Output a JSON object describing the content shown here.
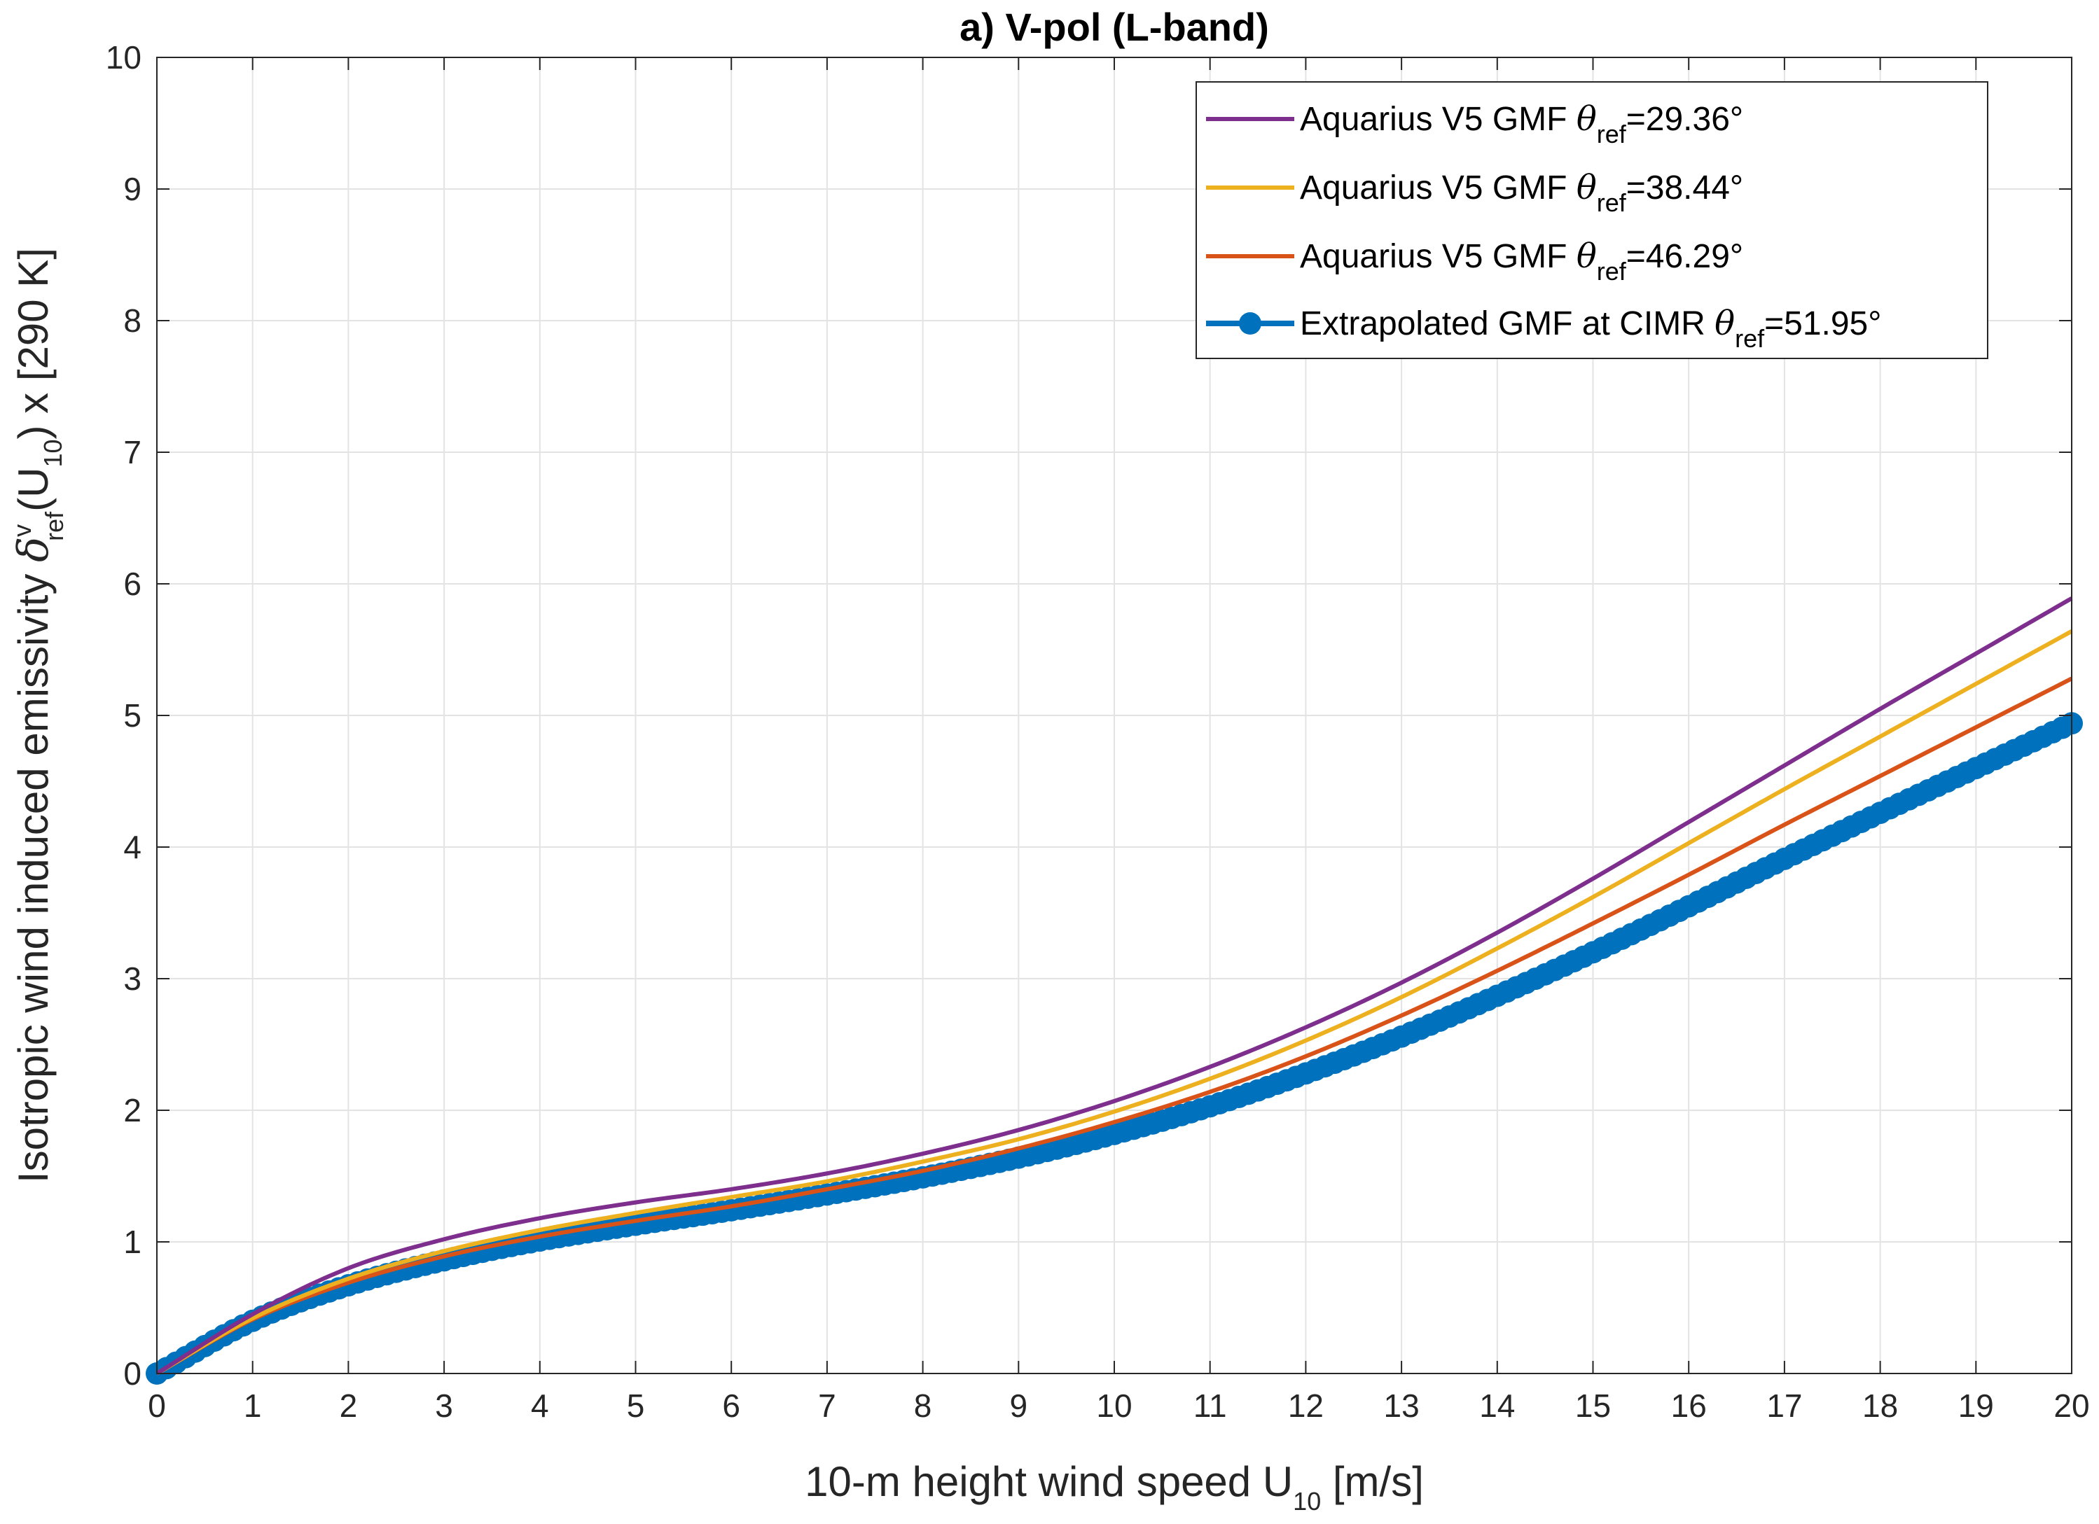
{
  "chart_data": {
    "type": "line",
    "title": "a) V-pol (L-band)",
    "xlabel": {
      "main": "10-m height wind speed U",
      "sub": "10",
      "tail": " [m/s]"
    },
    "ylabel": {
      "pre": "Isotropic wind induced emissivity ",
      "symbol": "δ",
      "sup": "v",
      "sub": "ref",
      "mid": "(U",
      "sub2": "10",
      "tail": ") x [290 K]"
    },
    "xlim": [
      0,
      20
    ],
    "ylim": [
      0,
      10
    ],
    "xticks": [
      "0",
      "1",
      "2",
      "3",
      "4",
      "5",
      "6",
      "7",
      "8",
      "9",
      "10",
      "11",
      "12",
      "13",
      "14",
      "15",
      "16",
      "17",
      "18",
      "19",
      "20"
    ],
    "yticks": [
      "0",
      "1",
      "2",
      "3",
      "4",
      "5",
      "6",
      "7",
      "8",
      "9",
      "10"
    ],
    "grid": true,
    "legend_position": "top-right",
    "x": [
      0,
      1,
      2,
      3,
      4,
      5,
      6,
      7,
      8,
      9,
      10,
      11,
      12,
      13,
      14,
      15,
      16,
      17,
      18,
      19,
      20
    ],
    "series": [
      {
        "label_pre": "Aquarius V5 GMF ",
        "label_theta": "θ",
        "label_sub": "ref",
        "label_post": "=29.36°",
        "color": "#7E2F8E",
        "marker": false,
        "values": [
          0,
          0.45,
          0.8,
          1.02,
          1.18,
          1.3,
          1.4,
          1.52,
          1.67,
          1.85,
          2.07,
          2.33,
          2.63,
          2.97,
          3.35,
          3.76,
          4.19,
          4.62,
          5.05,
          5.47,
          5.89
        ]
      },
      {
        "label_pre": "Aquarius V5 GMF ",
        "label_theta": "θ",
        "label_sub": "ref",
        "label_post": "=38.44°",
        "color": "#EDB120",
        "marker": false,
        "values": [
          0,
          0.42,
          0.72,
          0.93,
          1.09,
          1.22,
          1.34,
          1.46,
          1.61,
          1.78,
          1.99,
          2.24,
          2.53,
          2.86,
          3.23,
          3.62,
          4.03,
          4.44,
          4.84,
          5.24,
          5.64
        ]
      },
      {
        "label_pre": "Aquarius V5 GMF ",
        "label_theta": "θ",
        "label_sub": "ref",
        "label_post": "=46.29°",
        "color": "#D95319",
        "marker": false,
        "values": [
          0,
          0.41,
          0.69,
          0.89,
          1.04,
          1.16,
          1.27,
          1.4,
          1.54,
          1.71,
          1.91,
          2.14,
          2.41,
          2.72,
          3.06,
          3.42,
          3.79,
          4.17,
          4.54,
          4.91,
          5.28
        ]
      },
      {
        "label_pre": "Extrapolated GMF at CIMR ",
        "label_theta": "θ",
        "label_sub": "ref",
        "label_post": "=51.95°",
        "color": "#0072BD",
        "marker": true,
        "values": [
          0,
          0.4,
          0.67,
          0.86,
          1.01,
          1.13,
          1.24,
          1.36,
          1.49,
          1.64,
          1.82,
          2.03,
          2.28,
          2.56,
          2.87,
          3.2,
          3.55,
          3.91,
          4.26,
          4.6,
          4.94
        ]
      }
    ]
  }
}
